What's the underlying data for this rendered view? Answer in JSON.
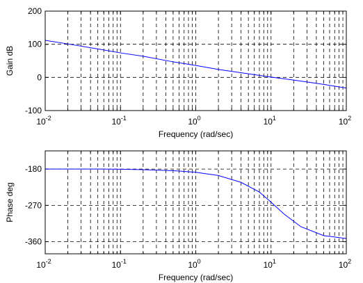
{
  "chart_data": [
    {
      "type": "line",
      "xscale": "log",
      "xlim": [
        0.01,
        100
      ],
      "ylim": [
        -100,
        200
      ],
      "xlabel": "Frequency (rad/sec)",
      "ylabel": "Gain dB",
      "grid": true,
      "line_color": "#0000ff",
      "x_ticks": [
        0.01,
        0.1,
        1,
        10,
        100
      ],
      "x_tick_labels": [
        {
          "base": "10",
          "exp": "-2"
        },
        {
          "base": "10",
          "exp": "-1"
        },
        {
          "base": "10",
          "exp": "0"
        },
        {
          "base": "10",
          "exp": "1"
        },
        {
          "base": "10",
          "exp": "2"
        }
      ],
      "y_ticks": [
        -100,
        0,
        100,
        200
      ],
      "y_tick_labels": [
        "-100",
        "0",
        "100",
        "200"
      ],
      "series": [
        {
          "x": [
            0.01,
            0.02,
            0.05,
            0.1,
            0.2,
            0.5,
            1,
            2,
            5,
            10,
            20,
            50,
            100
          ],
          "y": [
            112,
            101,
            86,
            74,
            64,
            47,
            36,
            24,
            11,
            1,
            -8,
            -21,
            -32
          ]
        }
      ]
    },
    {
      "type": "line",
      "xscale": "log",
      "xlim": [
        0.01,
        100
      ],
      "ylim": [
        -390,
        -135
      ],
      "xlabel": "Frequency (rad/sec)",
      "ylabel": "Phase deg",
      "grid": true,
      "line_color": "#0000ff",
      "x_ticks": [
        0.01,
        0.1,
        1,
        10,
        100
      ],
      "x_tick_labels": [
        {
          "base": "10",
          "exp": "-2"
        },
        {
          "base": "10",
          "exp": "-1"
        },
        {
          "base": "10",
          "exp": "0"
        },
        {
          "base": "10",
          "exp": "1"
        },
        {
          "base": "10",
          "exp": "2"
        }
      ],
      "y_ticks": [
        -180,
        -270,
        -360
      ],
      "y_tick_labels": [
        "-180",
        "-270",
        "-360"
      ],
      "series": [
        {
          "x": [
            0.01,
            0.05,
            0.1,
            0.2,
            0.5,
            1,
            2,
            4,
            7,
            10,
            15,
            25,
            50,
            100
          ],
          "y": [
            -180,
            -180,
            -180.5,
            -181.5,
            -184,
            -188,
            -196,
            -213,
            -237,
            -262,
            -292,
            -323,
            -345,
            -352
          ]
        }
      ]
    }
  ]
}
